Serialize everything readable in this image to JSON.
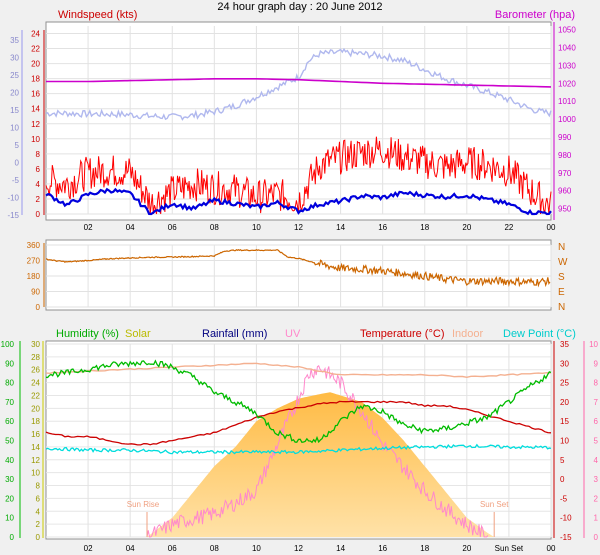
{
  "title": "24 hour graph day : 20 June 2012",
  "x_ticks": [
    "02",
    "04",
    "06",
    "08",
    "10",
    "12",
    "14",
    "16",
    "18",
    "20",
    "22",
    "00"
  ],
  "x_ticks_bottom": [
    "02",
    "04",
    "06",
    "08",
    "10",
    "12",
    "14",
    "16",
    "18",
    "20",
    "Sun Set",
    "00"
  ],
  "colors": {
    "wind_avg": "#0000dd",
    "wind_gust": "#ff0000",
    "baro": "#cc00cc",
    "baro_band": "#b0b8ee",
    "dir": "#cc6600",
    "humidity": "#00bb00",
    "solar": "#ffcc66",
    "rain": "#000080",
    "uv": "#ff88cc",
    "temp": "#cc0000",
    "indoor": "#f4b090",
    "dew": "#00dddd"
  },
  "chart_data": [
    {
      "type": "line",
      "name": "wind-baro",
      "ylabel": "Windspeed (kts)",
      "y2label": "Barometer (hpa)",
      "y_ticks_outer": [
        "35",
        "30",
        "25",
        "20",
        "15",
        "10",
        "5",
        "0",
        "-5",
        "-10",
        "-15"
      ],
      "y_ticks_inner": [
        "24",
        "22",
        "20",
        "18",
        "16",
        "14",
        "12",
        "10",
        "8",
        "6",
        "4",
        "2",
        "0"
      ],
      "y2_ticks": [
        "1050",
        "1040",
        "1030",
        "1020",
        "1010",
        "1000",
        "990",
        "980",
        "970",
        "960",
        "950"
      ],
      "ylim": [
        0,
        25
      ],
      "y2lim": [
        947,
        1052
      ],
      "series": [
        {
          "key": "baro",
          "x": [
            0,
            2,
            4,
            6,
            8,
            10,
            12,
            14,
            16,
            18,
            20,
            22,
            24
          ],
          "y": [
            1021,
            1021,
            1021.5,
            1022,
            1022.5,
            1022.5,
            1022,
            1021,
            1020,
            1019.5,
            1019,
            1018.5,
            1018
          ]
        },
        {
          "key": "band",
          "x": [
            0,
            1,
            2,
            3,
            4,
            5,
            6,
            7,
            8,
            9,
            10,
            11,
            12,
            12.5,
            13,
            14,
            15,
            16,
            17,
            18,
            19,
            20,
            21,
            22,
            23,
            23.5,
            24
          ],
          "y": [
            13.4,
            13.4,
            13.3,
            13.3,
            13.2,
            13,
            12.9,
            13.1,
            13.6,
            14.4,
            15.6,
            16.9,
            18.2,
            20.4,
            21.3,
            21.5,
            21.3,
            21,
            20.4,
            19.2,
            18,
            17.1,
            16.2,
            15.2,
            14,
            13.6,
            13.4
          ]
        },
        {
          "key": "gust",
          "x": [
            0,
            1,
            2,
            3,
            4,
            5,
            6,
            7,
            8,
            9,
            10,
            11,
            12,
            13,
            14,
            15,
            16,
            17,
            18,
            19,
            20,
            21,
            22,
            23,
            24
          ],
          "y": [
            4.5,
            4,
            5.5,
            5.8,
            5.6,
            1.4,
            3,
            4,
            3.5,
            3.2,
            2.3,
            2.6,
            1.8,
            6.5,
            7.5,
            8.2,
            8.6,
            7.6,
            6.9,
            6.3,
            6.9,
            6.5,
            5.7,
            3.1,
            1
          ]
        },
        {
          "key": "avg",
          "x": [
            0,
            1,
            2,
            3,
            4,
            5,
            6,
            7,
            8,
            9,
            10,
            11,
            12,
            13,
            14,
            15,
            16,
            17,
            18,
            19,
            20,
            21,
            22,
            23,
            24
          ],
          "y": [
            2.7,
            1.2,
            2.6,
            3.2,
            2.7,
            0,
            1.4,
            0.7,
            1.8,
            1.4,
            0.9,
            1.5,
            0.4,
            1.3,
            1.7,
            2.4,
            2.2,
            2.8,
            2.5,
            2.3,
            2.5,
            1.9,
            1.3,
            0.2,
            0.2
          ]
        }
      ]
    },
    {
      "type": "line",
      "name": "wind-direction",
      "y_ticks": [
        "360",
        "270",
        "180",
        "90",
        "0"
      ],
      "y2_ticks": [
        "N",
        "W",
        "S",
        "E",
        "N"
      ],
      "ylim": [
        0,
        360
      ],
      "series": [
        {
          "key": "dir",
          "x": [
            0,
            0.5,
            1,
            2,
            3,
            4,
            5,
            6,
            7,
            8,
            8.5,
            9,
            10,
            11,
            11.5,
            12,
            13,
            14,
            15,
            16,
            17,
            18,
            19,
            20,
            21,
            22,
            23,
            24
          ],
          "y": [
            278,
            268,
            262,
            270,
            280,
            285,
            289,
            290,
            293,
            297,
            325,
            330,
            330,
            330,
            290,
            282,
            250,
            225,
            220,
            210,
            195,
            180,
            162,
            150,
            150,
            150,
            145,
            150
          ]
        }
      ]
    },
    {
      "type": "line",
      "name": "humidity-temp",
      "labels": [
        "Humidity (%)",
        "Solar",
        "Rainfall (mm)",
        "UV",
        "Temperature (°C)",
        "Indoor",
        "Dew Point (°C)"
      ],
      "y_ticks_outer": [
        "100",
        "90",
        "80",
        "70",
        "60",
        "50",
        "40",
        "30",
        "20",
        "10",
        "0"
      ],
      "y_ticks_inner": [
        "30",
        "28",
        "26",
        "24",
        "22",
        "20",
        "18",
        "16",
        "14",
        "12",
        "10",
        "8",
        "6",
        "4",
        "2",
        "0"
      ],
      "y2_ticks": [
        "35",
        "30",
        "25",
        "20",
        "15",
        "10",
        "5",
        "0",
        "-5",
        "-10",
        "-15"
      ],
      "y3_ticks": [
        "10",
        "9",
        "8",
        "7",
        "6",
        "5",
        "4",
        "3",
        "2",
        "1",
        "0"
      ],
      "ylim": [
        0,
        100
      ],
      "y2lim": [
        -15,
        35
      ],
      "annotations": [
        "Sun Rise",
        "Sun Set"
      ],
      "series": [
        {
          "key": "humidity",
          "x": [
            0,
            1,
            2,
            3,
            4,
            5,
            6,
            7,
            8,
            9,
            10,
            11,
            12,
            13,
            14,
            15,
            16,
            17,
            18,
            19,
            20,
            21,
            22,
            23,
            24
          ],
          "y": [
            84,
            85,
            87,
            89,
            90,
            91,
            88,
            83,
            75,
            70,
            64,
            54,
            50,
            50,
            60,
            68,
            65,
            58,
            55,
            56,
            59,
            62,
            70,
            78,
            85
          ]
        },
        {
          "key": "temp",
          "x": [
            0,
            1,
            2,
            3,
            4,
            5,
            6,
            7,
            8,
            9,
            10,
            11,
            12,
            13,
            14,
            15,
            16,
            17,
            18,
            19,
            20,
            21,
            22,
            23,
            24
          ],
          "y": [
            12,
            11,
            11,
            10,
            9,
            9,
            10,
            11,
            12,
            14,
            16,
            17.5,
            18.5,
            19.5,
            20,
            20,
            20,
            20,
            19,
            19,
            18,
            16.5,
            15,
            13.5,
            12
          ]
        },
        {
          "key": "indoor",
          "x": [
            0,
            2,
            4,
            6,
            8,
            10,
            12,
            14,
            16,
            18,
            20,
            22,
            24
          ],
          "y": [
            27.5,
            28,
            28.5,
            29,
            29.5,
            30,
            29,
            27,
            27,
            27,
            26.5,
            27,
            27.5
          ]
        },
        {
          "key": "dew",
          "x": [
            0,
            2,
            4,
            6,
            8,
            10,
            12,
            14,
            16,
            18,
            20,
            22,
            24
          ],
          "y": [
            8,
            7.5,
            7.5,
            7,
            7,
            7,
            7,
            7.5,
            8,
            8.3,
            8.6,
            8.3,
            8.2
          ]
        },
        {
          "key": "solar",
          "x": [
            4.8,
            6,
            7,
            8,
            9,
            10,
            11,
            12,
            13,
            13.5,
            14,
            15,
            16,
            17,
            18,
            19,
            20,
            21,
            21.3
          ],
          "y": [
            0,
            3,
            7,
            11,
            14,
            18,
            20,
            21.5,
            22.2,
            22.5,
            22,
            21,
            18.5,
            15,
            11,
            7,
            3,
            0.6,
            0
          ]
        },
        {
          "key": "uv",
          "x": [
            4.8,
            6,
            7,
            8,
            9,
            10,
            11,
            12,
            12.5,
            13,
            14,
            15,
            16,
            17,
            18,
            19,
            20,
            21
          ],
          "y": [
            0,
            0.8,
            1.2,
            1.5,
            2.2,
            3,
            6,
            9,
            10.6,
            11,
            10,
            8.2,
            6,
            4.5,
            3,
            1.8,
            0.8,
            0
          ]
        }
      ]
    }
  ]
}
